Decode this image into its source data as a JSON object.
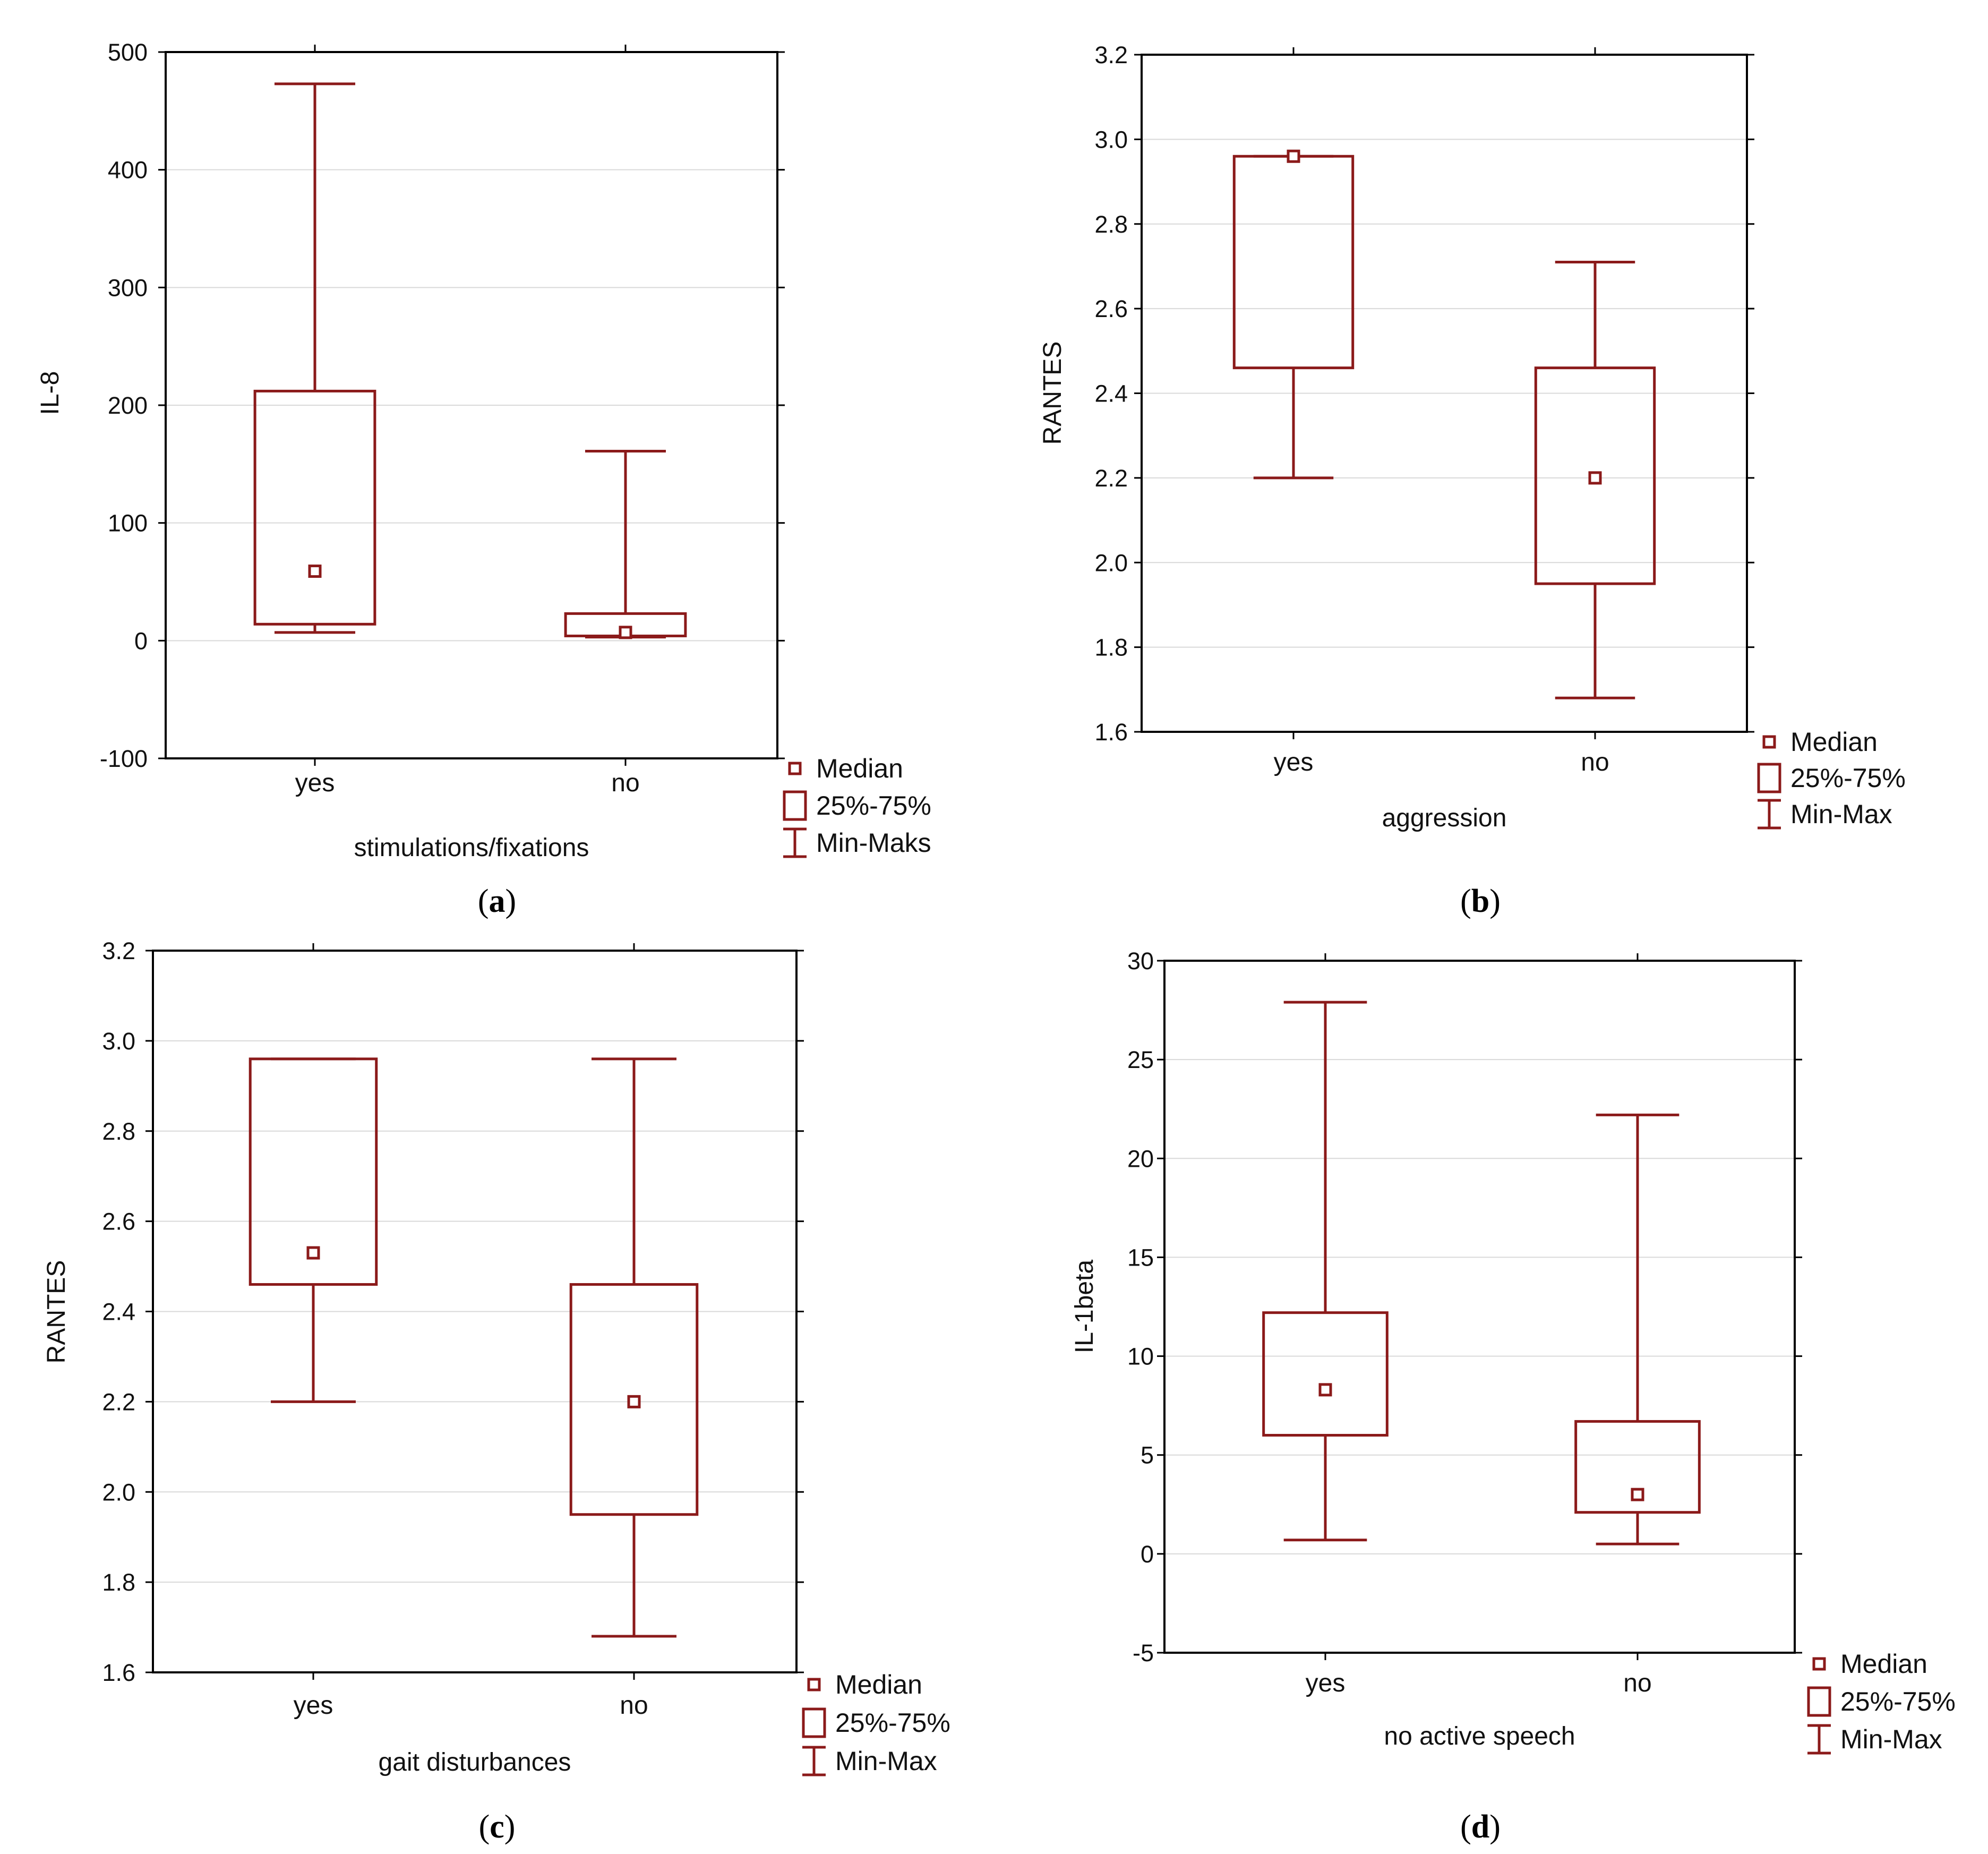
{
  "colors": {
    "box": "#8b1a1a",
    "grid": "#d9d9d9",
    "frame": "#000000"
  },
  "chart_data": [
    {
      "id": "a",
      "type": "box",
      "caption_letter": "a",
      "ylabel": "IL-8",
      "xlabel": "stimulations/fixations",
      "ylim": [
        -100,
        500
      ],
      "yticks": [
        -100,
        0,
        100,
        200,
        300,
        400,
        500
      ],
      "ytick_labels": [
        "-100",
        "0",
        "100",
        "200",
        "300",
        "400",
        "500"
      ],
      "categories": [
        "yes",
        "no"
      ],
      "boxes": [
        {
          "min": 7,
          "q1": 14,
          "median": 59,
          "q3": 212,
          "max": 473
        },
        {
          "min": 3,
          "q1": 4,
          "median": 7,
          "q3": 23,
          "max": 161
        }
      ],
      "legend": {
        "median": "Median",
        "box": "25%-75%",
        "range": "Min-Maks"
      }
    },
    {
      "id": "b",
      "type": "box",
      "caption_letter": "b",
      "ylabel": "RANTES",
      "xlabel": "aggression",
      "ylim": [
        1.6,
        3.2
      ],
      "yticks": [
        1.6,
        1.8,
        2.0,
        2.2,
        2.4,
        2.6,
        2.8,
        3.0,
        3.2
      ],
      "ytick_labels": [
        "1.6",
        "1.8",
        "2.0",
        "2.2",
        "2.4",
        "2.6",
        "2.8",
        "3.0",
        "3.2"
      ],
      "categories": [
        "yes",
        "no"
      ],
      "boxes": [
        {
          "min": 2.2,
          "q1": 2.46,
          "median": 2.96,
          "q3": 2.96,
          "max": 2.96
        },
        {
          "min": 1.68,
          "q1": 1.95,
          "median": 2.2,
          "q3": 2.46,
          "max": 2.71
        }
      ],
      "legend": {
        "median": "Median",
        "box": "25%-75%",
        "range": "Min-Max"
      }
    },
    {
      "id": "c",
      "type": "box",
      "caption_letter": "c",
      "ylabel": "RANTES",
      "xlabel": "gait disturbances",
      "ylim": [
        1.6,
        3.2
      ],
      "yticks": [
        1.6,
        1.8,
        2.0,
        2.2,
        2.4,
        2.6,
        2.8,
        3.0,
        3.2
      ],
      "ytick_labels": [
        "1.6",
        "1.8",
        "2.0",
        "2.2",
        "2.4",
        "2.6",
        "2.8",
        "3.0",
        "3.2"
      ],
      "categories": [
        "yes",
        "no"
      ],
      "boxes": [
        {
          "min": 2.2,
          "q1": 2.46,
          "median": 2.53,
          "q3": 2.96,
          "max": 2.96
        },
        {
          "min": 1.68,
          "q1": 1.95,
          "median": 2.2,
          "q3": 2.46,
          "max": 2.96
        }
      ],
      "legend": {
        "median": "Median",
        "box": "25%-75%",
        "range": "Min-Max"
      }
    },
    {
      "id": "d",
      "type": "box",
      "caption_letter": "d",
      "ylabel": "IL-1beta",
      "xlabel": "no active speech",
      "ylim": [
        -5,
        30
      ],
      "yticks": [
        -5,
        0,
        5,
        10,
        15,
        20,
        25,
        30
      ],
      "ytick_labels": [
        "-5",
        "0",
        "5",
        "10",
        "15",
        "20",
        "25",
        "30"
      ],
      "categories": [
        "yes",
        "no"
      ],
      "boxes": [
        {
          "min": 0.7,
          "q1": 6.0,
          "median": 8.3,
          "q3": 12.2,
          "max": 27.9
        },
        {
          "min": 0.5,
          "q1": 2.1,
          "median": 3.0,
          "q3": 6.7,
          "max": 22.2
        }
      ],
      "legend": {
        "median": "Median",
        "box": "25%-75%",
        "range": "Min-Max"
      }
    }
  ]
}
